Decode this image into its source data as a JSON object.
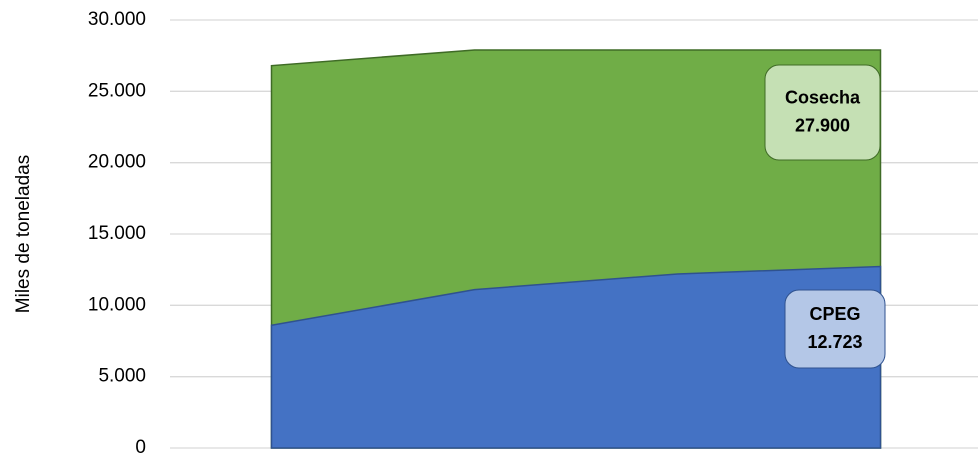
{
  "chart_data": {
    "type": "area",
    "y_label": "Miles de toneladas",
    "categories": [
      null,
      null,
      null,
      null
    ],
    "series": [
      {
        "name": "Cosecha",
        "color": "#70ad47",
        "values": [
          26800,
          27900,
          27900,
          27900
        ],
        "value_labels": [
          null,
          null,
          null,
          "27.900"
        ]
      },
      {
        "name": "CPEG",
        "color": "#4472c4",
        "values": [
          8600,
          11100,
          12200,
          12723
        ],
        "value_labels": [
          null,
          null,
          null,
          "12.723"
        ]
      }
    ],
    "ylim": [
      0,
      30000
    ],
    "yticks": [
      0,
      {
        "value": 5000,
        "label": "5.000"
      },
      {
        "value": 10000,
        "label": "10.000"
      },
      {
        "value": 15000,
        "label": "15.000"
      },
      {
        "value": 20000,
        "label": "20.000"
      },
      {
        "value": 25000,
        "label": "25.000"
      },
      {
        "value": 30000,
        "label": "30.000"
      }
    ],
    "grid": true
  }
}
